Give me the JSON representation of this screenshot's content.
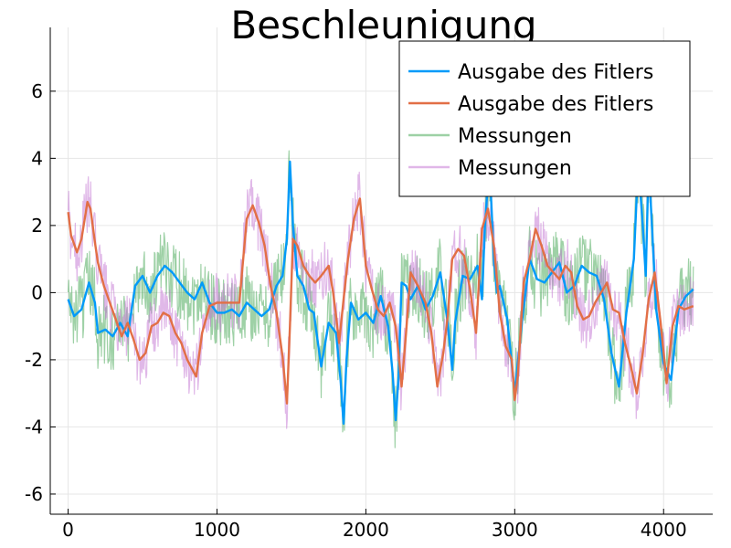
{
  "chart_data": {
    "type": "line",
    "title": "Beschleunigung",
    "xlabel": "",
    "ylabel": "",
    "xlim": [
      -120,
      4330
    ],
    "ylim": [
      -6.6,
      7.9
    ],
    "x_ticks": [
      0,
      1000,
      2000,
      3000,
      4000
    ],
    "y_ticks": [
      -6,
      -4,
      -2,
      0,
      2,
      4,
      6
    ],
    "x_tick_labels": [
      "0",
      "1000",
      "2000",
      "3000",
      "4000"
    ],
    "y_tick_labels": [
      "-6",
      "-4",
      "-2",
      "0",
      "2",
      "4",
      "6"
    ],
    "grid": true,
    "legend_position": "top-right",
    "series": [
      {
        "name": "Ausgabe des Fitlers",
        "color": "#009af9",
        "style": "line-thick",
        "x": [
          0,
          40,
          90,
          140,
          180,
          200,
          250,
          300,
          350,
          400,
          450,
          500,
          550,
          600,
          650,
          700,
          750,
          800,
          850,
          900,
          950,
          1000,
          1050,
          1100,
          1150,
          1200,
          1250,
          1300,
          1350,
          1400,
          1440,
          1470,
          1490,
          1510,
          1540,
          1580,
          1620,
          1650,
          1700,
          1750,
          1800,
          1830,
          1850,
          1870,
          1900,
          1950,
          2000,
          2050,
          2100,
          2150,
          2180,
          2200,
          2220,
          2240,
          2270,
          2300,
          2350,
          2400,
          2450,
          2500,
          2550,
          2580,
          2600,
          2650,
          2700,
          2750,
          2780,
          2800,
          2830,
          2860,
          2880,
          2900,
          2950,
          3000,
          3050,
          3100,
          3150,
          3200,
          3250,
          3300,
          3350,
          3400,
          3450,
          3500,
          3550,
          3600,
          3650,
          3700,
          3750,
          3800,
          3830,
          3860,
          3880,
          3900,
          3950,
          4000,
          4050,
          4100,
          4150,
          4200
        ],
        "y": [
          -0.2,
          -0.7,
          -0.5,
          0.3,
          -0.3,
          -1.2,
          -1.1,
          -1.3,
          -0.9,
          -1.3,
          0.2,
          0.5,
          0.0,
          0.5,
          0.8,
          0.6,
          0.3,
          0.0,
          -0.2,
          0.3,
          -0.3,
          -0.6,
          -0.6,
          -0.5,
          -0.7,
          -0.3,
          -0.5,
          -0.7,
          -0.5,
          0.2,
          0.5,
          1.6,
          3.9,
          2.0,
          0.5,
          0.2,
          -0.5,
          -0.6,
          -2.2,
          -0.9,
          -1.2,
          -2.6,
          -3.9,
          -2.0,
          -0.3,
          -0.8,
          -0.6,
          -0.9,
          -0.1,
          -1.0,
          -2.4,
          -3.8,
          -2.5,
          0.3,
          0.2,
          -0.2,
          0.2,
          -0.5,
          -0.1,
          0.6,
          -0.9,
          -2.3,
          -0.9,
          0.5,
          0.4,
          0.8,
          -0.2,
          2.0,
          3.9,
          1.0,
          0.0,
          0.2,
          -0.8,
          -3.0,
          -0.8,
          1.0,
          0.4,
          0.3,
          0.6,
          0.9,
          0.0,
          0.2,
          0.8,
          0.6,
          0.5,
          -0.2,
          -1.8,
          -2.8,
          -0.6,
          1.0,
          3.9,
          2.0,
          0.5,
          3.9,
          -0.5,
          -2.1,
          -2.6,
          -0.5,
          -0.1,
          0.1
        ]
      },
      {
        "name": "Ausgabe des Fitlers",
        "color": "#e26f46",
        "style": "line-thick",
        "x": [
          0,
          20,
          60,
          90,
          130,
          150,
          180,
          200,
          240,
          280,
          320,
          360,
          400,
          440,
          480,
          520,
          560,
          600,
          640,
          680,
          720,
          760,
          800,
          860,
          900,
          950,
          1000,
          1050,
          1100,
          1150,
          1200,
          1240,
          1280,
          1320,
          1360,
          1400,
          1440,
          1470,
          1490,
          1510,
          1540,
          1580,
          1620,
          1660,
          1700,
          1750,
          1780,
          1800,
          1820,
          1850,
          1880,
          1920,
          1960,
          2000,
          2040,
          2080,
          2120,
          2160,
          2200,
          2220,
          2240,
          2270,
          2300,
          2350,
          2400,
          2440,
          2480,
          2520,
          2550,
          2580,
          2620,
          2660,
          2700,
          2740,
          2780,
          2820,
          2860,
          2900,
          2940,
          2980,
          3000,
          3020,
          3060,
          3100,
          3140,
          3180,
          3220,
          3260,
          3300,
          3340,
          3380,
          3420,
          3460,
          3500,
          3540,
          3580,
          3620,
          3660,
          3700,
          3740,
          3780,
          3820,
          3860,
          3900,
          3940,
          3980,
          4020,
          4060,
          4100,
          4140,
          4200
        ],
        "y": [
          2.4,
          1.7,
          1.2,
          1.6,
          2.7,
          2.5,
          1.5,
          0.9,
          0.2,
          -0.3,
          -0.8,
          -1.3,
          -0.9,
          -1.4,
          -2.0,
          -1.8,
          -1.0,
          -0.9,
          -0.6,
          -0.7,
          -1.2,
          -1.5,
          -2.0,
          -2.5,
          -1.2,
          -0.4,
          -0.3,
          -0.3,
          -0.3,
          -0.3,
          2.2,
          2.6,
          2.1,
          1.4,
          0.2,
          -0.6,
          -1.9,
          -3.3,
          -1.0,
          1.6,
          1.4,
          0.8,
          0.5,
          0.3,
          0.5,
          0.8,
          0.0,
          -0.7,
          -1.5,
          -0.2,
          1.0,
          2.2,
          2.8,
          0.8,
          0.1,
          -0.5,
          -0.7,
          -0.3,
          -1.0,
          -1.8,
          -2.8,
          -1.2,
          0.6,
          0.2,
          -0.3,
          -1.2,
          -2.8,
          -1.8,
          -0.7,
          1.0,
          1.3,
          1.1,
          0.1,
          -1.2,
          1.9,
          2.5,
          1.4,
          -0.6,
          -1.6,
          -2.0,
          -3.2,
          -2.5,
          0.3,
          1.0,
          1.9,
          1.4,
          0.8,
          0.6,
          0.4,
          0.8,
          0.6,
          -0.4,
          -0.8,
          -0.7,
          -0.3,
          0.0,
          0.3,
          -0.5,
          -0.6,
          -1.5,
          -2.2,
          -3.0,
          -1.8,
          -0.2,
          0.6,
          -0.9,
          -2.7,
          -1.0,
          -0.4,
          -0.5,
          -0.4
        ]
      },
      {
        "name": "Messungen",
        "color": "#3da44d",
        "style": "noisy",
        "noise": 1.1,
        "x": [
          0,
          40,
          90,
          140,
          180,
          200,
          250,
          300,
          350,
          400,
          450,
          500,
          550,
          600,
          650,
          700,
          750,
          800,
          850,
          900,
          950,
          1000,
          1050,
          1100,
          1150,
          1200,
          1250,
          1300,
          1350,
          1400,
          1440,
          1470,
          1490,
          1510,
          1540,
          1580,
          1620,
          1650,
          1700,
          1750,
          1800,
          1830,
          1850,
          1870,
          1900,
          1950,
          2000,
          2050,
          2100,
          2150,
          2180,
          2200,
          2220,
          2240,
          2270,
          2300,
          2350,
          2400,
          2450,
          2500,
          2550,
          2580,
          2600,
          2650,
          2700,
          2750,
          2780,
          2800,
          2830,
          2860,
          2880,
          2900,
          2950,
          3000,
          3050,
          3100,
          3150,
          3200,
          3250,
          3300,
          3350,
          3400,
          3450,
          3500,
          3550,
          3600,
          3650,
          3700,
          3750,
          3800,
          3830,
          3860,
          3880,
          3900,
          3950,
          4000,
          4050,
          4100,
          4150,
          4200
        ],
        "y": [
          -0.2,
          -0.7,
          -0.5,
          0.3,
          -0.3,
          -1.2,
          -1.1,
          -1.3,
          -0.9,
          -1.3,
          0.2,
          0.5,
          0.0,
          0.5,
          0.8,
          0.6,
          0.3,
          0.0,
          -0.2,
          0.3,
          -0.3,
          -0.6,
          -0.6,
          -0.5,
          -0.7,
          -0.3,
          -0.5,
          -0.7,
          -0.5,
          0.2,
          0.5,
          1.6,
          3.9,
          2.0,
          0.5,
          0.2,
          -0.5,
          -0.6,
          -2.2,
          -0.9,
          -1.2,
          -2.6,
          -3.9,
          -2.0,
          -0.3,
          -0.8,
          -0.6,
          -0.9,
          -0.1,
          -1.0,
          -2.4,
          -3.8,
          -2.5,
          0.3,
          0.2,
          -0.2,
          0.2,
          -0.5,
          -0.1,
          0.6,
          -0.9,
          -2.3,
          -0.9,
          0.5,
          0.4,
          0.8,
          -0.2,
          2.0,
          3.9,
          1.0,
          0.0,
          0.2,
          -0.8,
          -3.0,
          -0.8,
          1.0,
          0.4,
          0.3,
          0.6,
          0.9,
          0.0,
          0.2,
          0.8,
          0.6,
          0.5,
          -0.2,
          -1.8,
          -2.8,
          -0.6,
          1.0,
          3.9,
          2.0,
          0.5,
          3.9,
          -0.5,
          -2.1,
          -2.6,
          -0.5,
          -0.1,
          0.1
        ]
      },
      {
        "name": "Messungen",
        "color": "#c271d2",
        "style": "noisy",
        "noise": 0.9,
        "x": [
          0,
          20,
          60,
          90,
          130,
          150,
          180,
          200,
          240,
          280,
          320,
          360,
          400,
          440,
          480,
          520,
          560,
          600,
          640,
          680,
          720,
          760,
          800,
          860,
          900,
          950,
          1000,
          1050,
          1100,
          1150,
          1200,
          1240,
          1280,
          1320,
          1360,
          1400,
          1440,
          1470,
          1490,
          1510,
          1540,
          1580,
          1620,
          1660,
          1700,
          1750,
          1780,
          1800,
          1820,
          1850,
          1880,
          1920,
          1960,
          2000,
          2040,
          2080,
          2120,
          2160,
          2200,
          2220,
          2240,
          2270,
          2300,
          2350,
          2400,
          2440,
          2480,
          2520,
          2550,
          2580,
          2620,
          2660,
          2700,
          2740,
          2780,
          2820,
          2860,
          2900,
          2940,
          2980,
          3000,
          3020,
          3060,
          3100,
          3140,
          3180,
          3220,
          3260,
          3300,
          3340,
          3380,
          3420,
          3460,
          3500,
          3540,
          3580,
          3620,
          3660,
          3700,
          3740,
          3780,
          3820,
          3860,
          3900,
          3940,
          3980,
          4020,
          4060,
          4100,
          4140,
          4200
        ],
        "y": [
          2.4,
          1.7,
          1.2,
          1.6,
          2.7,
          2.5,
          1.5,
          0.9,
          0.2,
          -0.3,
          -0.8,
          -1.3,
          -0.9,
          -1.4,
          -2.0,
          -1.8,
          -1.0,
          -0.9,
          -0.6,
          -0.7,
          -1.2,
          -1.5,
          -2.0,
          -2.5,
          -1.2,
          -0.4,
          -0.3,
          -0.3,
          -0.3,
          -0.3,
          2.2,
          2.6,
          2.1,
          1.4,
          0.2,
          -0.6,
          -1.9,
          -3.3,
          -1.0,
          1.6,
          1.4,
          0.8,
          0.5,
          0.3,
          0.5,
          0.8,
          0.0,
          -0.7,
          -1.5,
          -0.2,
          1.0,
          2.2,
          2.8,
          0.8,
          0.1,
          -0.5,
          -0.7,
          -0.3,
          -1.0,
          -1.8,
          -2.8,
          -1.2,
          0.6,
          0.2,
          -0.3,
          -1.2,
          -2.8,
          -1.8,
          -0.7,
          1.0,
          1.3,
          1.1,
          0.1,
          -1.2,
          1.9,
          2.5,
          1.4,
          -0.6,
          -1.6,
          -2.0,
          -3.2,
          -2.5,
          0.3,
          1.0,
          1.9,
          1.4,
          0.8,
          0.6,
          0.4,
          0.8,
          0.6,
          -0.4,
          -0.8,
          -0.7,
          -0.3,
          0.0,
          0.3,
          -0.5,
          -0.6,
          -1.5,
          -2.2,
          -3.0,
          -1.8,
          -0.2,
          0.6,
          -0.9,
          -2.7,
          -1.0,
          -0.4,
          -0.5,
          -0.4
        ]
      }
    ]
  }
}
